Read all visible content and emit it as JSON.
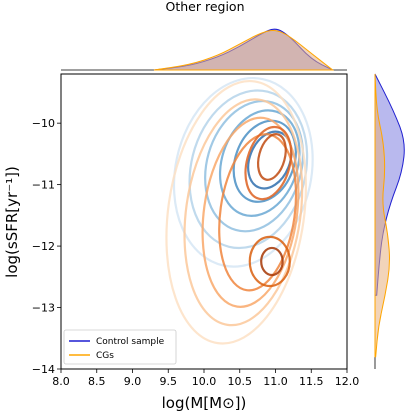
{
  "chart_data": {
    "type": "kde-contour-jointplot",
    "title": "Other region",
    "xlabel": "log(M[M$_\\odot$])",
    "xlabel_display": "log(M[M⊙])",
    "ylabel": "log(sSFR[yr$^{-1}$])",
    "ylabel_display": "log(sSFR[yr⁻¹])",
    "xlim": [
      8.0,
      12.0
    ],
    "ylim": [
      -14.0,
      -9.2
    ],
    "x_ticks": [
      "8.0",
      "8.5",
      "9.0",
      "9.5",
      "10.0",
      "10.5",
      "11.0",
      "11.5",
      "12.0"
    ],
    "x_tick_values": [
      8.0,
      8.5,
      9.0,
      9.5,
      10.0,
      10.5,
      11.0,
      11.5,
      12.0
    ],
    "y_ticks": [
      "−10",
      "−11",
      "−12",
      "−13",
      "−14"
    ],
    "y_tick_values": [
      -10,
      -11,
      -12,
      -13,
      -14
    ],
    "legend": {
      "placement": "lower-left",
      "entries": [
        {
          "label": "Control sample",
          "color": "#1f1fd0"
        },
        {
          "label": "CGs",
          "color": "#ffa500"
        }
      ]
    },
    "series": [
      {
        "name": "Control sample",
        "colormap": "Blues",
        "contour_centers": [
          {
            "x": 10.95,
            "y": -10.6
          }
        ],
        "contours": [
          {
            "level": 1,
            "cx": 10.55,
            "cy": -10.8,
            "rx": 0.95,
            "ry": 1.55,
            "rot": 12
          },
          {
            "level": 2,
            "cx": 10.62,
            "cy": -10.75,
            "rx": 0.8,
            "ry": 1.3,
            "rot": 14
          },
          {
            "level": 3,
            "cx": 10.7,
            "cy": -10.7,
            "rx": 0.66,
            "ry": 1.08,
            "rot": 16
          },
          {
            "level": 4,
            "cx": 10.78,
            "cy": -10.65,
            "rx": 0.53,
            "ry": 0.88,
            "rot": 18
          },
          {
            "level": 5,
            "cx": 10.85,
            "cy": -10.62,
            "rx": 0.41,
            "ry": 0.68,
            "rot": 20
          },
          {
            "level": 6,
            "cx": 10.92,
            "cy": -10.6,
            "rx": 0.28,
            "ry": 0.48,
            "rot": 22
          }
        ],
        "marginal_x": [
          [
            9.3,
            0.0
          ],
          [
            9.8,
            0.08
          ],
          [
            10.2,
            0.25
          ],
          [
            10.5,
            0.45
          ],
          [
            10.8,
            0.7
          ],
          [
            11.0,
            0.82
          ],
          [
            11.2,
            0.65
          ],
          [
            11.5,
            0.2
          ],
          [
            11.8,
            0.0
          ]
        ],
        "marginal_y": [
          [
            -9.2,
            0.0
          ],
          [
            -9.8,
            0.55
          ],
          [
            -10.3,
            0.9
          ],
          [
            -10.8,
            0.8
          ],
          [
            -11.3,
            0.45
          ],
          [
            -11.8,
            0.22
          ],
          [
            -12.3,
            0.12
          ],
          [
            -12.8,
            0.05
          ]
        ]
      },
      {
        "name": "CGs",
        "colormap": "Oranges",
        "contour_centers": [
          {
            "x": 10.95,
            "y": -10.6
          },
          {
            "x": 10.95,
            "y": -12.3
          }
        ],
        "contours": [
          {
            "level": 1,
            "cx": 10.45,
            "cy": -11.45,
            "rx": 0.95,
            "ry": 2.15,
            "rot": 8
          },
          {
            "level": 2,
            "cx": 10.55,
            "cy": -11.45,
            "rx": 0.8,
            "ry": 1.85,
            "rot": 8
          },
          {
            "level": 3,
            "cx": 10.65,
            "cy": -11.45,
            "rx": 0.65,
            "ry": 1.55,
            "rot": 8
          },
          {
            "level": 4,
            "cx": 10.75,
            "cy": -11.45,
            "rx": 0.52,
            "ry": 1.28,
            "rot": 8
          },
          {
            "level": 5,
            "cx": 10.9,
            "cy": -10.65,
            "rx": 0.3,
            "ry": 0.6,
            "rot": 15
          },
          {
            "level": 6,
            "cx": 10.95,
            "cy": -10.55,
            "rx": 0.18,
            "ry": 0.38,
            "rot": 15
          },
          {
            "level": 7,
            "cx": 10.92,
            "cy": -12.25,
            "rx": 0.28,
            "ry": 0.4,
            "rot": 0
          },
          {
            "level": 8,
            "cx": 10.95,
            "cy": -12.25,
            "rx": 0.15,
            "ry": 0.22,
            "rot": 0
          }
        ],
        "marginal_x": [
          [
            9.3,
            0.0
          ],
          [
            9.8,
            0.1
          ],
          [
            10.2,
            0.28
          ],
          [
            10.5,
            0.5
          ],
          [
            10.8,
            0.72
          ],
          [
            11.0,
            0.78
          ],
          [
            11.2,
            0.65
          ],
          [
            11.5,
            0.32
          ],
          [
            11.8,
            0.0
          ]
        ],
        "marginal_y": [
          [
            -9.2,
            0.0
          ],
          [
            -9.8,
            0.05
          ],
          [
            -10.3,
            0.25
          ],
          [
            -10.8,
            0.3
          ],
          [
            -11.3,
            0.2
          ],
          [
            -11.8,
            0.38
          ],
          [
            -12.3,
            0.45
          ],
          [
            -12.8,
            0.3
          ],
          [
            -13.3,
            0.1
          ],
          [
            -13.8,
            0.02
          ]
        ]
      }
    ],
    "marginal_overlap_color": "#b08090"
  }
}
